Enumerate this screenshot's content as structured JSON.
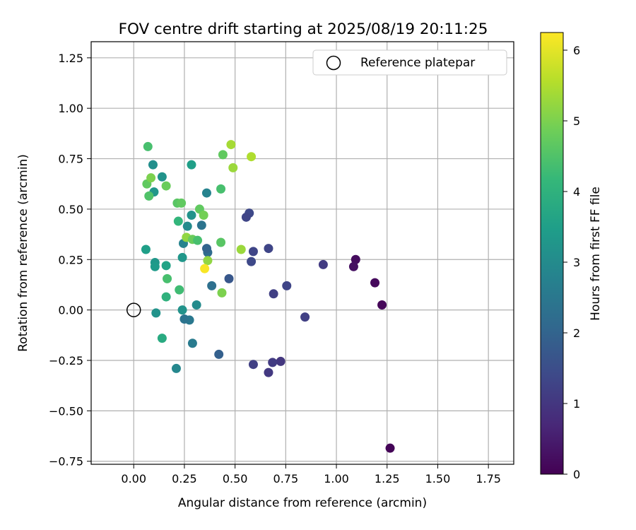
{
  "chart_data": {
    "type": "scatter",
    "title": "FOV centre drift starting at 2025/08/19 20:11:25",
    "xlabel": "Angular distance from reference (arcmin)",
    "ylabel": "Rotation from reference (arcmin)",
    "xlim": [
      -0.21,
      1.875
    ],
    "ylim": [
      -0.765,
      1.33
    ],
    "xticks": [
      0.0,
      0.25,
      0.5,
      0.75,
      1.0,
      1.25,
      1.5,
      1.75
    ],
    "xtick_labels": [
      "0.00",
      "0.25",
      "0.50",
      "0.75",
      "1.00",
      "1.25",
      "1.50",
      "1.75"
    ],
    "yticks": [
      -0.75,
      -0.5,
      -0.25,
      0.0,
      0.25,
      0.5,
      0.75,
      1.0,
      1.25
    ],
    "ytick_labels": [
      "−0.75",
      "−0.50",
      "−0.25",
      "0.00",
      "0.25",
      "0.50",
      "0.75",
      "1.00",
      "1.25"
    ],
    "grid": true,
    "legend": {
      "placement": "top-right",
      "entries": [
        "Reference platepar"
      ]
    },
    "reference_point": {
      "x": 0.0,
      "y": 0.0,
      "label": "Reference platepar"
    },
    "colorbar": {
      "label": "Hours from first FF file",
      "colormap": "viridis",
      "range": [
        0,
        6.25
      ],
      "ticks": [
        0,
        1,
        2,
        3,
        4,
        5,
        6
      ],
      "tick_labels": [
        "0",
        "1",
        "2",
        "3",
        "4",
        "5",
        "6"
      ],
      "colors": [
        "#440154",
        "#482878",
        "#3e4989",
        "#31688e",
        "#26828e",
        "#1f9e89",
        "#35b779",
        "#6ece58",
        "#b5de2b",
        "#fde725"
      ]
    },
    "points": [
      {
        "x": 1.265,
        "y": -0.685,
        "c": 0.05
      },
      {
        "x": 1.225,
        "y": 0.025,
        "c": 0.1
      },
      {
        "x": 1.19,
        "y": 0.135,
        "c": 0.15
      },
      {
        "x": 1.095,
        "y": 0.25,
        "c": 0.2
      },
      {
        "x": 1.085,
        "y": 0.215,
        "c": 0.25
      },
      {
        "x": 0.935,
        "y": 0.225,
        "c": 1.1
      },
      {
        "x": 0.845,
        "y": -0.035,
        "c": 1.2
      },
      {
        "x": 0.755,
        "y": 0.12,
        "c": 1.3
      },
      {
        "x": 0.725,
        "y": -0.255,
        "c": 1.0
      },
      {
        "x": 0.69,
        "y": 0.08,
        "c": 1.2
      },
      {
        "x": 0.685,
        "y": -0.26,
        "c": 1.1
      },
      {
        "x": 0.665,
        "y": 0.305,
        "c": 1.3
      },
      {
        "x": 0.665,
        "y": -0.31,
        "c": 1.05
      },
      {
        "x": 0.59,
        "y": 0.29,
        "c": 1.3
      },
      {
        "x": 0.59,
        "y": -0.27,
        "c": 1.2
      },
      {
        "x": 0.58,
        "y": 0.24,
        "c": 1.4
      },
      {
        "x": 0.57,
        "y": 0.48,
        "c": 1.4
      },
      {
        "x": 0.555,
        "y": 0.46,
        "c": 1.3
      },
      {
        "x": 0.47,
        "y": 0.155,
        "c": 1.7
      },
      {
        "x": 0.42,
        "y": -0.22,
        "c": 1.9
      },
      {
        "x": 0.385,
        "y": 0.12,
        "c": 2.3
      },
      {
        "x": 0.365,
        "y": 0.285,
        "c": 2.2
      },
      {
        "x": 0.36,
        "y": 0.305,
        "c": 2.0
      },
      {
        "x": 0.36,
        "y": 0.58,
        "c": 2.8
      },
      {
        "x": 0.335,
        "y": 0.42,
        "c": 2.4
      },
      {
        "x": 0.31,
        "y": 0.025,
        "c": 3.0
      },
      {
        "x": 0.29,
        "y": -0.165,
        "c": 2.6
      },
      {
        "x": 0.275,
        "y": -0.05,
        "c": 2.5
      },
      {
        "x": 0.25,
        "y": -0.045,
        "c": 2.4
      },
      {
        "x": 0.245,
        "y": 0.33,
        "c": 2.8
      },
      {
        "x": 0.24,
        "y": 0.0,
        "c": 3.2
      },
      {
        "x": 0.21,
        "y": -0.29,
        "c": 2.9
      },
      {
        "x": 0.24,
        "y": 0.26,
        "c": 3.3
      },
      {
        "x": 0.265,
        "y": 0.415,
        "c": 3.0
      },
      {
        "x": 0.285,
        "y": 0.47,
        "c": 3.2
      },
      {
        "x": 0.285,
        "y": 0.72,
        "c": 3.5
      },
      {
        "x": 0.14,
        "y": 0.66,
        "c": 3.2
      },
      {
        "x": 0.095,
        "y": 0.72,
        "c": 3.1
      },
      {
        "x": 0.1,
        "y": 0.585,
        "c": 3.3
      },
      {
        "x": 0.105,
        "y": 0.235,
        "c": 3.3
      },
      {
        "x": 0.105,
        "y": 0.215,
        "c": 3.4
      },
      {
        "x": 0.11,
        "y": -0.015,
        "c": 3.2
      },
      {
        "x": 0.06,
        "y": 0.3,
        "c": 3.5
      },
      {
        "x": 0.16,
        "y": 0.22,
        "c": 3.6
      },
      {
        "x": 0.14,
        "y": -0.14,
        "c": 3.8
      },
      {
        "x": 0.16,
        "y": 0.065,
        "c": 4.0
      },
      {
        "x": 0.165,
        "y": 0.155,
        "c": 4.4
      },
      {
        "x": 0.22,
        "y": 0.44,
        "c": 4.1
      },
      {
        "x": 0.225,
        "y": 0.1,
        "c": 4.3
      },
      {
        "x": 0.215,
        "y": 0.53,
        "c": 4.6
      },
      {
        "x": 0.235,
        "y": 0.53,
        "c": 4.7
      },
      {
        "x": 0.26,
        "y": 0.36,
        "c": 5.2
      },
      {
        "x": 0.29,
        "y": 0.35,
        "c": 4.8
      },
      {
        "x": 0.315,
        "y": 0.345,
        "c": 4.4
      },
      {
        "x": 0.325,
        "y": 0.5,
        "c": 4.7
      },
      {
        "x": 0.345,
        "y": 0.47,
        "c": 4.9
      },
      {
        "x": 0.365,
        "y": 0.245,
        "c": 5.2
      },
      {
        "x": 0.43,
        "y": 0.6,
        "c": 4.4
      },
      {
        "x": 0.43,
        "y": 0.335,
        "c": 4.6
      },
      {
        "x": 0.435,
        "y": 0.085,
        "c": 5.0
      },
      {
        "x": 0.44,
        "y": 0.77,
        "c": 4.7
      },
      {
        "x": 0.48,
        "y": 0.82,
        "c": 5.4
      },
      {
        "x": 0.49,
        "y": 0.705,
        "c": 5.3
      },
      {
        "x": 0.53,
        "y": 0.3,
        "c": 5.3
      },
      {
        "x": 0.58,
        "y": 0.76,
        "c": 5.5
      },
      {
        "x": 0.07,
        "y": 0.81,
        "c": 4.4
      },
      {
        "x": 0.065,
        "y": 0.625,
        "c": 4.7
      },
      {
        "x": 0.075,
        "y": 0.565,
        "c": 4.5
      },
      {
        "x": 0.085,
        "y": 0.655,
        "c": 5.0
      },
      {
        "x": 0.16,
        "y": 0.615,
        "c": 4.8
      },
      {
        "x": 0.35,
        "y": 0.205,
        "c": 6.2
      }
    ]
  }
}
